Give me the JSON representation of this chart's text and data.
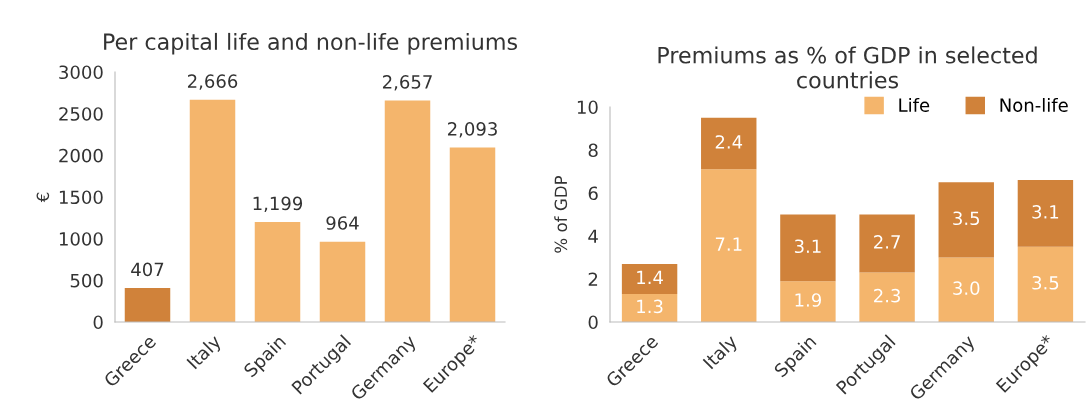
{
  "chart_data": [
    {
      "type": "bar",
      "title": "Per capital life and non-life premiums",
      "ylabel": "€",
      "categories": [
        "Greece",
        "Italy",
        "Spain",
        "Portugal",
        "Germany",
        "Europe*"
      ],
      "values": [
        407,
        2666,
        1199,
        964,
        2657,
        2093
      ],
      "colors": [
        "#d0823a",
        "#f4b56c",
        "#f4b56c",
        "#f4b56c",
        "#f4b56c",
        "#f4b56c"
      ],
      "value_labels": [
        "407",
        "2,666",
        "1,199",
        "964",
        "2,657",
        "2,093"
      ],
      "ylim": [
        0,
        3000
      ],
      "yticks": [
        0,
        500,
        1000,
        1500,
        2000,
        2500,
        3000
      ],
      "grid": false,
      "legend": false
    },
    {
      "type": "bar",
      "stacked": true,
      "title": "Premiums as % of GDP in selected countries",
      "ylabel": "% of GDP",
      "categories": [
        "Greece",
        "Italy",
        "Spain",
        "Portugal",
        "Germany",
        "Europe*"
      ],
      "series": [
        {
          "name": "Life",
          "color": "#f4b56c",
          "values": [
            1.3,
            7.1,
            1.9,
            2.3,
            3.0,
            3.5
          ],
          "value_labels": [
            "1.3",
            "7.1",
            "1.9",
            "2.3",
            "3.0",
            "3.5"
          ]
        },
        {
          "name": "Non-life",
          "color": "#d0823a",
          "values": [
            1.4,
            2.4,
            3.1,
            2.7,
            3.5,
            3.1
          ],
          "value_labels": [
            "1.4",
            "2.4",
            "3.1",
            "2.7",
            "3.5",
            "3.1"
          ]
        }
      ],
      "ylim": [
        0,
        10
      ],
      "yticks": [
        0,
        2,
        4,
        6,
        8,
        10
      ],
      "grid": false,
      "legend": "top right"
    }
  ]
}
